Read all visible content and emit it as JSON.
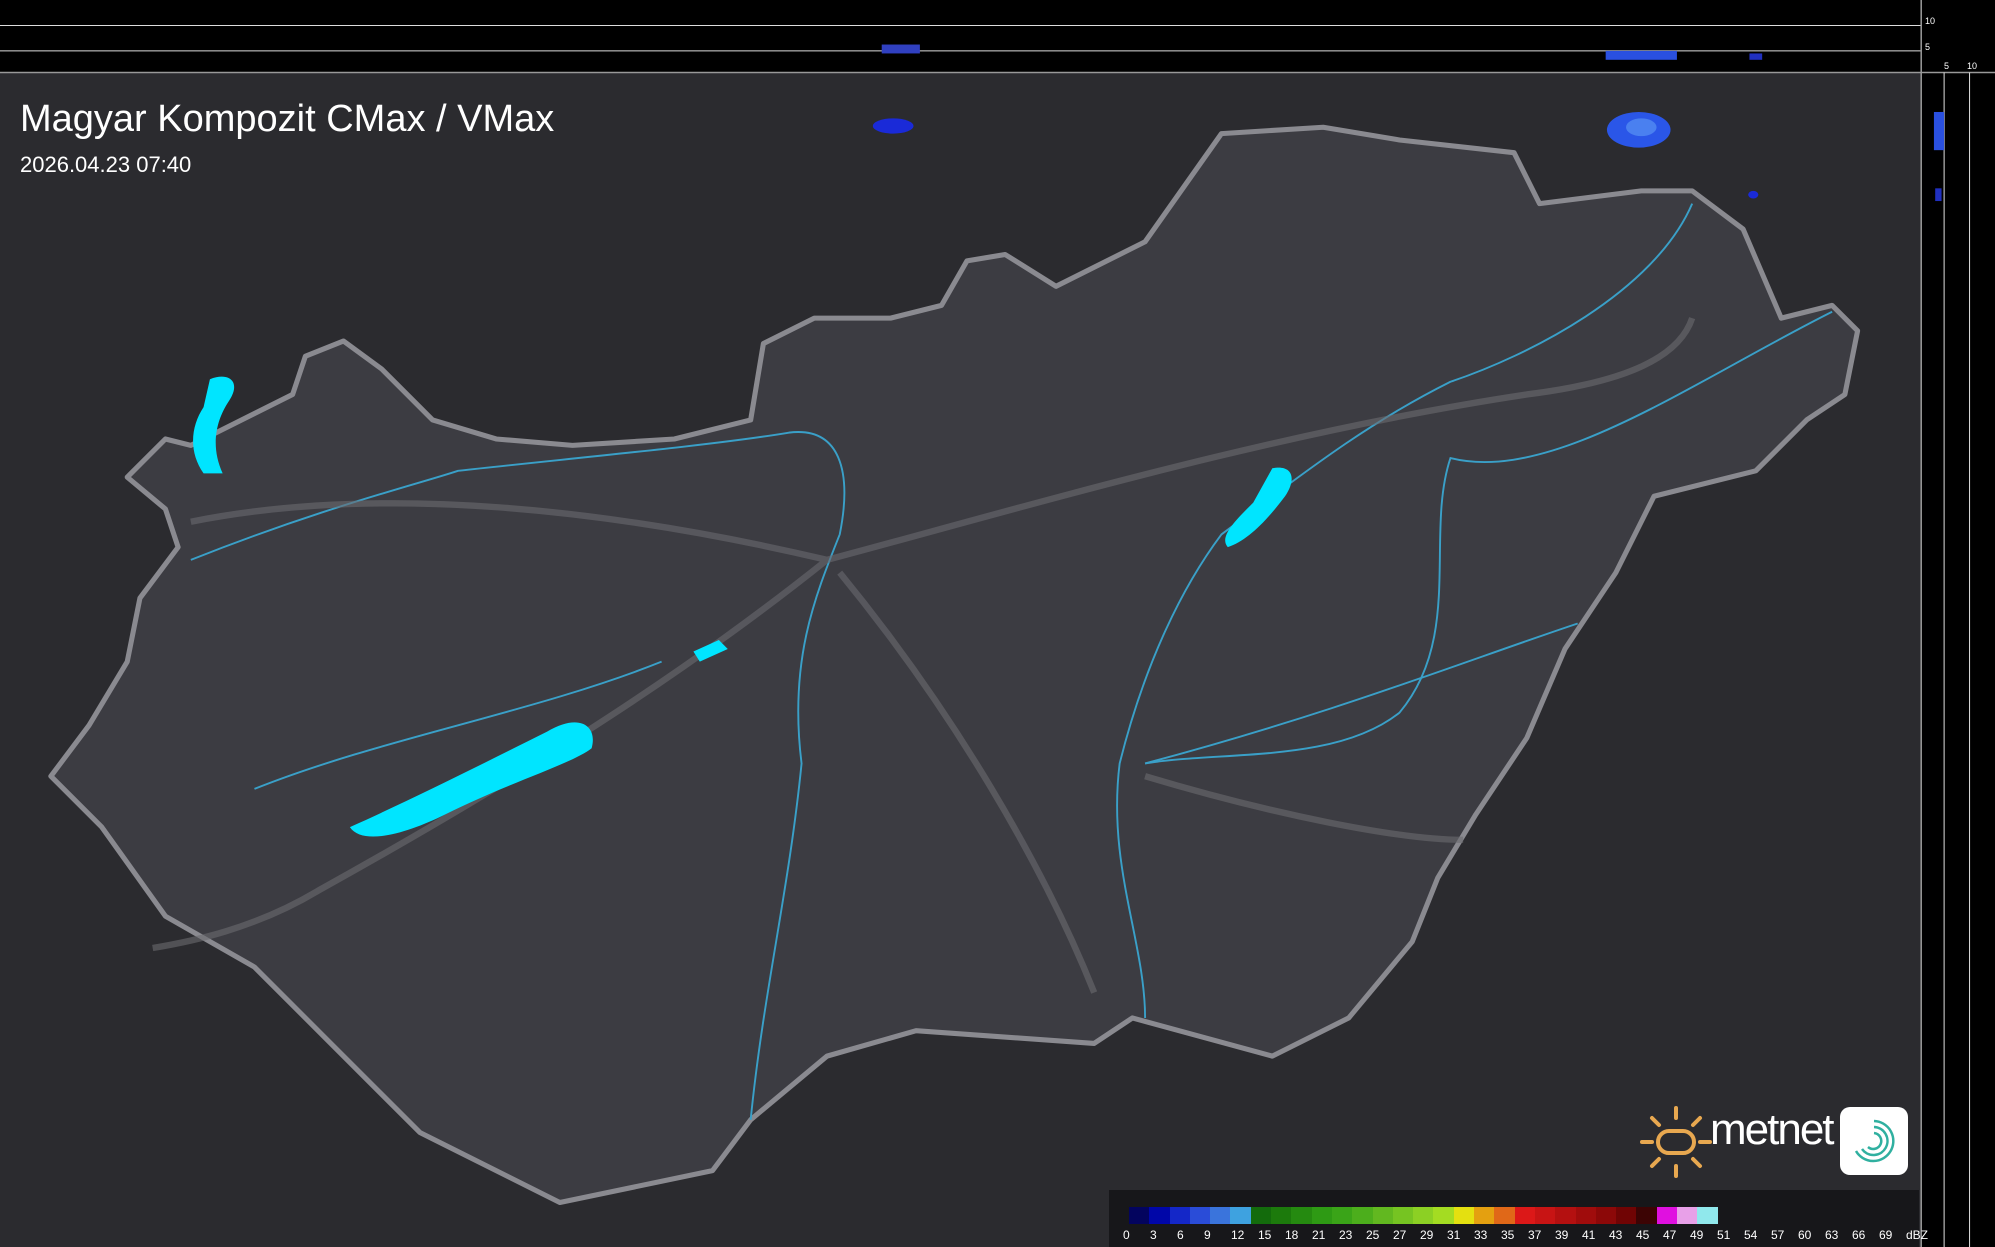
{
  "header": {
    "title": "Magyar Kompozit CMax / VMax",
    "timestamp": "2026.04.23 07:40"
  },
  "profile_axes": {
    "top_labels": [
      "10",
      "5"
    ],
    "right_labels": [
      "5",
      "10"
    ]
  },
  "legend": {
    "unit": "dBZ",
    "labels": [
      "0",
      "3",
      "6",
      "9",
      "12",
      "15",
      "18",
      "21",
      "23",
      "25",
      "27",
      "29",
      "31",
      "33",
      "35",
      "37",
      "39",
      "41",
      "43",
      "45",
      "47",
      "49",
      "51",
      "54",
      "57",
      "60",
      "63",
      "66",
      "69",
      "dBZ"
    ],
    "colors": [
      "#03045e",
      "#0006a8",
      "#1427c8",
      "#2a4cd8",
      "#3a74dc",
      "#3ea2e0",
      "#136b0c",
      "#1c7a0c",
      "#258a10",
      "#2e9a14",
      "#3aa418",
      "#4cae1c",
      "#62b820",
      "#76c422",
      "#8cd024",
      "#a4dc22",
      "#e4e010",
      "#e4a010",
      "#e06818",
      "#dc1818",
      "#c81414",
      "#b41010",
      "#a00c0c",
      "#8c0808",
      "#700404",
      "#3c0404",
      "#e010e0",
      "#e8a0e8",
      "#90e8ec"
    ]
  },
  "branding": {
    "logo_text": "metnet"
  },
  "colors": {
    "background": "#2b2b2f",
    "land": "#3c3c42",
    "water": "#00e5ff",
    "rivers": "#3aa0c8",
    "border": "#8a8a90"
  }
}
